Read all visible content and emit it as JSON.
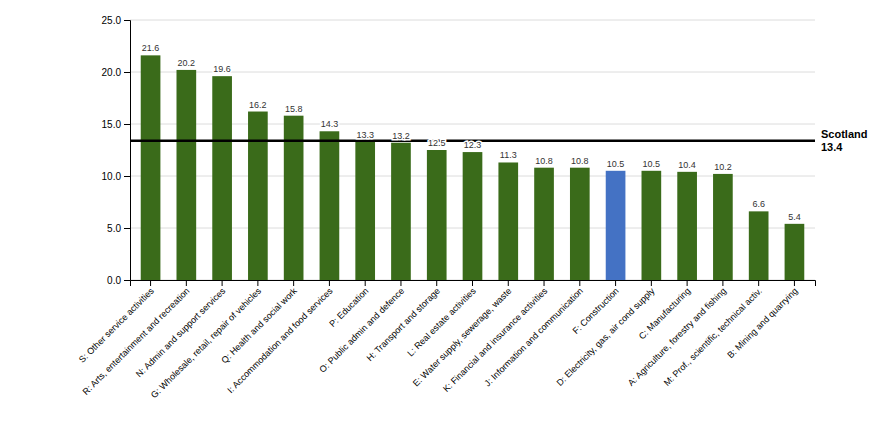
{
  "chart_data": {
    "type": "bar",
    "categories": [
      "S: Other service activities",
      "R: Arts, entertainment and recreation",
      "N: Admin and support services",
      "G: Wholesale, retail, repair of vehicles",
      "Q: Health and social work",
      "I: Accommodation and food services",
      "P: Education",
      "O: Public admin and defence",
      "H: Transport and storage",
      "L: Real estate activities",
      "E: Water supply, sewerage, waste",
      "K: Financial and insurance activities",
      "J: Information and communication",
      "F: Construction",
      "D: Electricity, gas, air cond supply",
      "C: Manufacturing",
      "A: Agriculture, forestry and fishing",
      "M: Prof., scientific, technical activ.",
      "B: Mining and quarrying"
    ],
    "values": [
      21.6,
      20.2,
      19.6,
      16.2,
      15.8,
      14.3,
      13.3,
      13.2,
      12.5,
      12.3,
      11.3,
      10.8,
      10.8,
      10.5,
      10.5,
      10.4,
      10.2,
      6.6,
      5.4
    ],
    "colors": [
      "#3a6b1a",
      "#3a6b1a",
      "#3a6b1a",
      "#3a6b1a",
      "#3a6b1a",
      "#3a6b1a",
      "#3a6b1a",
      "#3a6b1a",
      "#3a6b1a",
      "#3a6b1a",
      "#3a6b1a",
      "#3a6b1a",
      "#3a6b1a",
      "#4472c4",
      "#3a6b1a",
      "#3a6b1a",
      "#3a6b1a",
      "#3a6b1a",
      "#3a6b1a"
    ],
    "reference_line": {
      "value": 13.4,
      "label": "Scotland",
      "value_label": "13.4"
    },
    "ylim": [
      0,
      25.0
    ],
    "yticks": [
      {
        "value": 0,
        "label": "0.0"
      },
      {
        "value": 5,
        "label": "5.0"
      },
      {
        "value": 10,
        "label": "10.0"
      },
      {
        "value": 15,
        "label": "15.0"
      },
      {
        "value": 20,
        "label": "20.0"
      },
      {
        "value": 25,
        "label": "25.0"
      }
    ],
    "grid": true,
    "data_labels": true
  }
}
